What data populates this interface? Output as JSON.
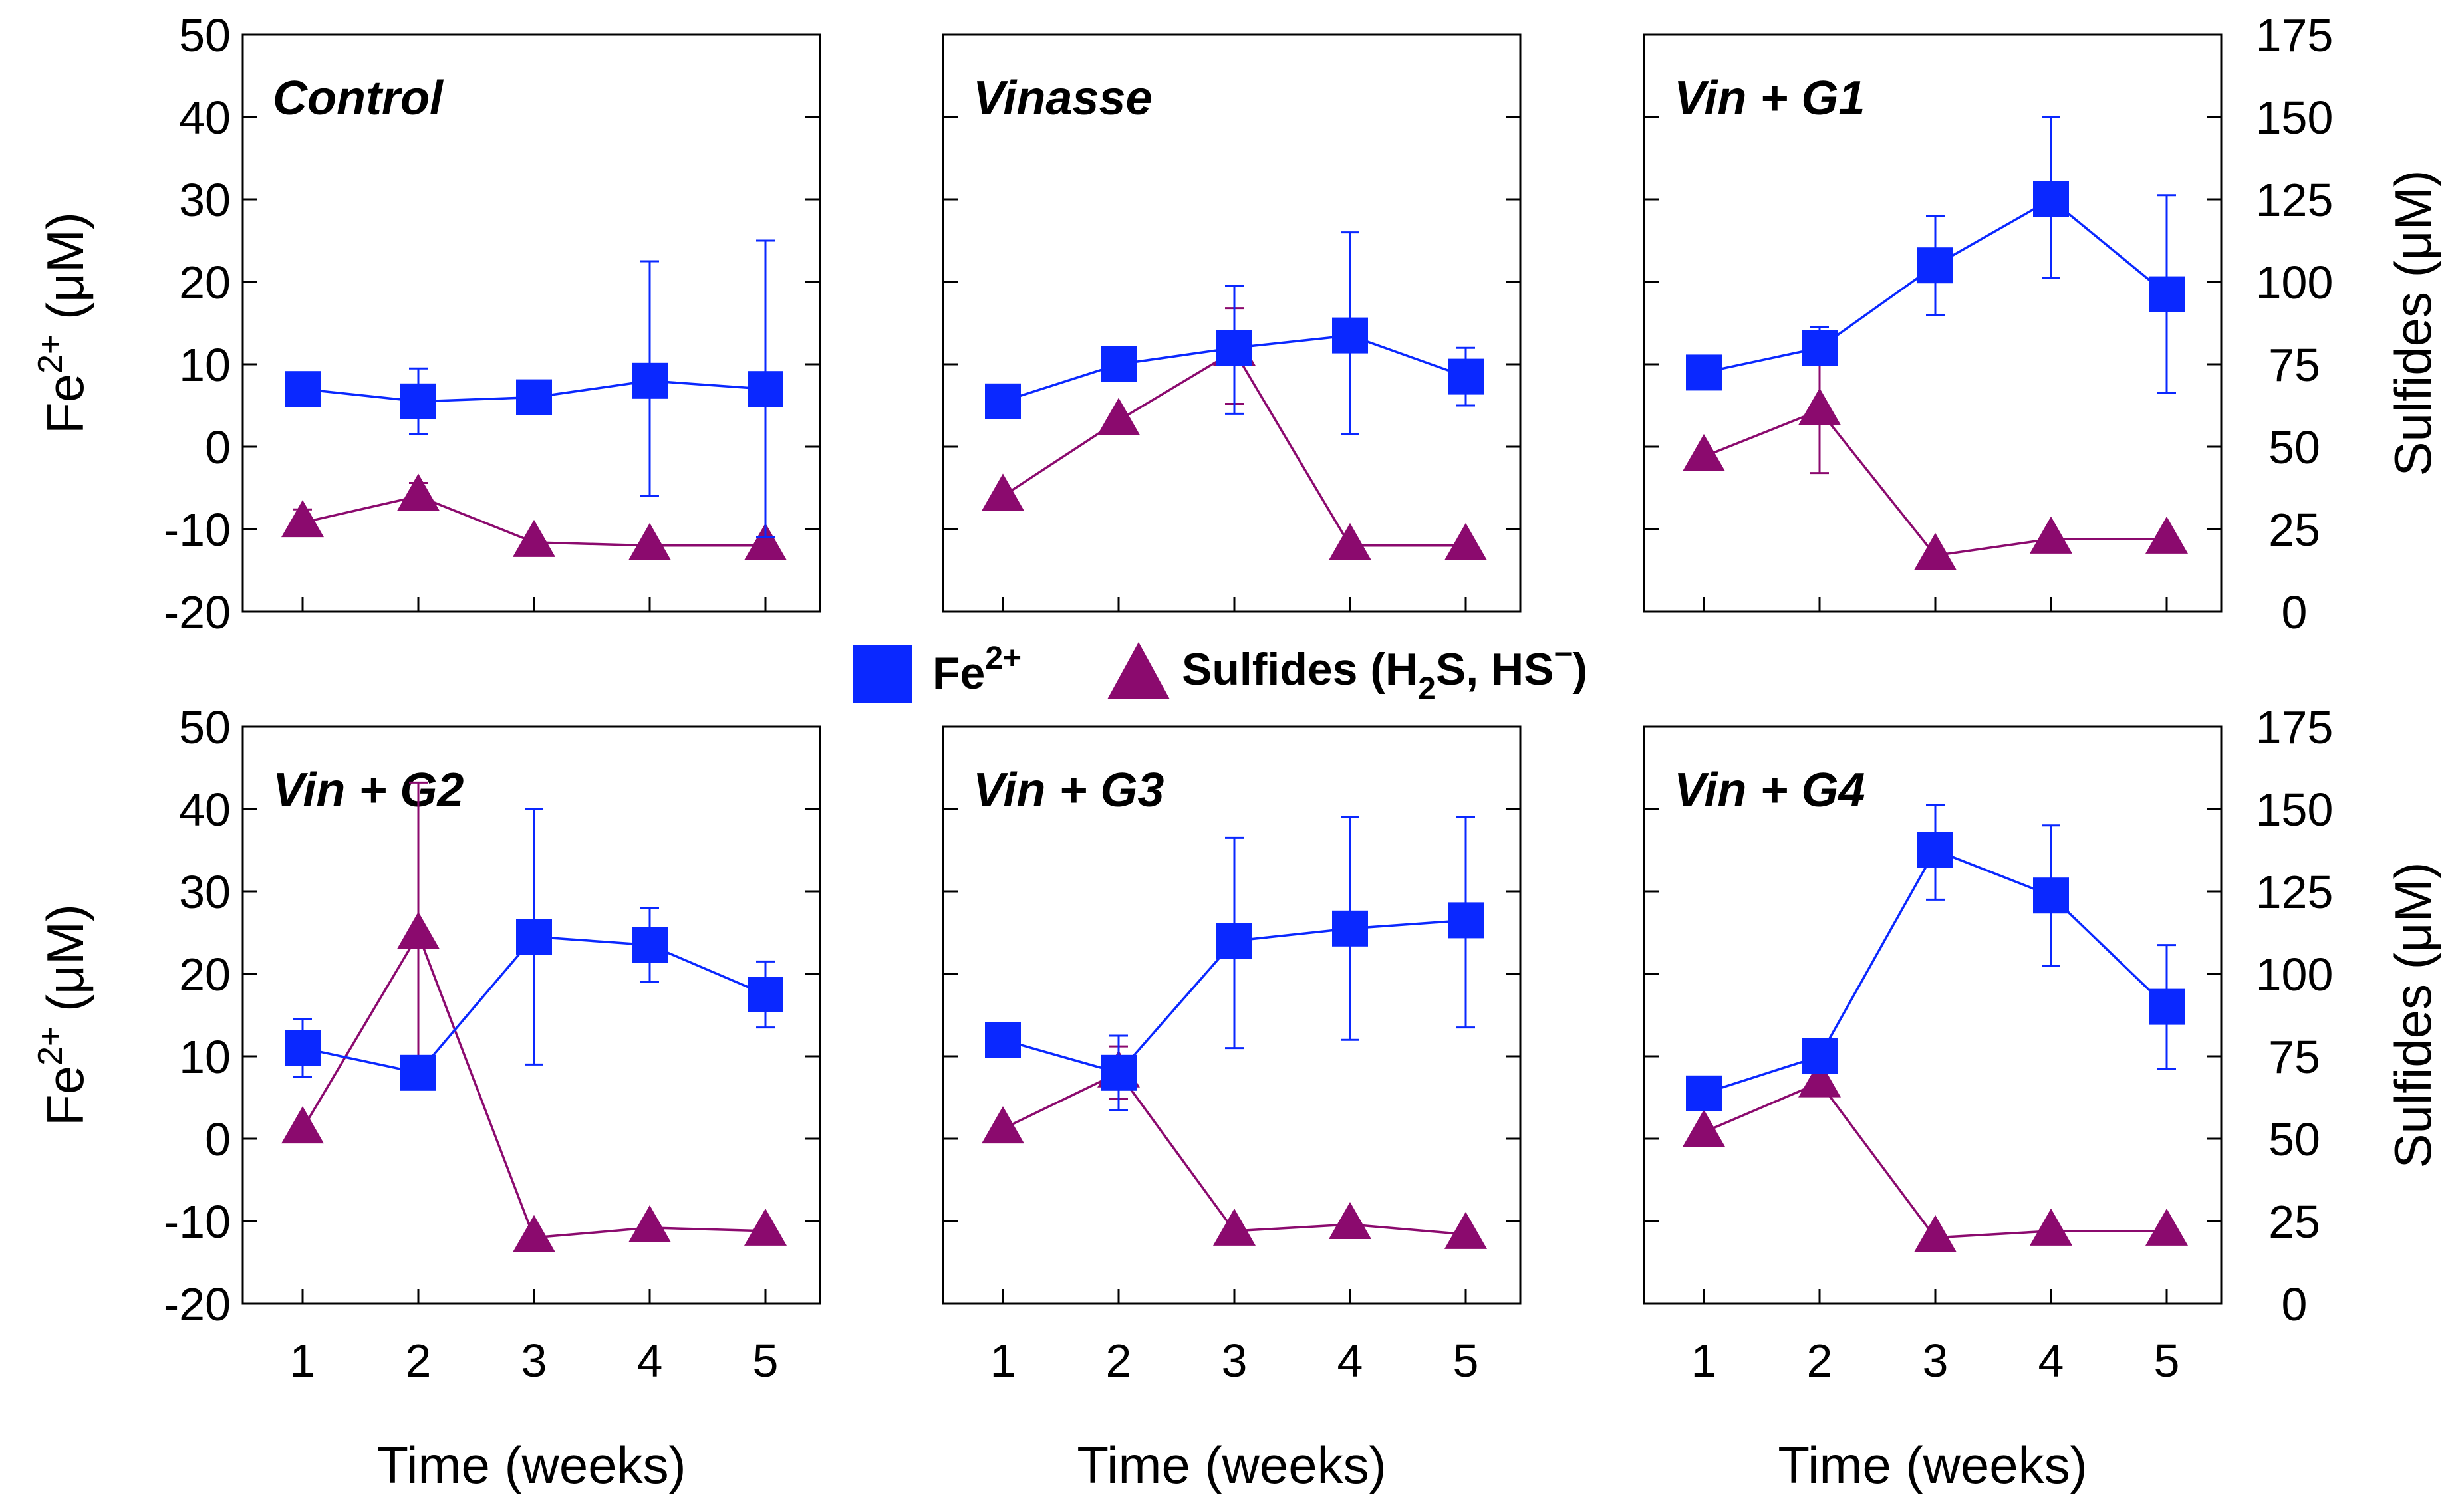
{
  "chart_data": {
    "type": "line",
    "layout": "2x3 panels",
    "x_label": "Time (weeks)",
    "x_ticks": [
      1,
      2,
      3,
      4,
      5
    ],
    "left_axis": {
      "label_main": "Fe",
      "label_sup": "2+",
      "label_unit": " (μM)",
      "ylim": [
        -20,
        50
      ],
      "ticks": [
        50,
        40,
        30,
        20,
        10,
        0,
        -10,
        -20
      ]
    },
    "right_axis": {
      "label": "Sulfides (μM)",
      "ylim": [
        0,
        175
      ],
      "ticks": [
        175,
        150,
        125,
        100,
        75,
        50,
        25,
        0
      ]
    },
    "legend": {
      "fe_main": "Fe",
      "fe_sup": "2+",
      "s_prefix": "Sulfides (H",
      "s_sub": "2",
      "s_mid": "S, HS",
      "s_sup": "−",
      "s_suffix": ")"
    },
    "colors": {
      "fe": "#0a28ff",
      "sulfide": "#8b0a6e"
    },
    "panels": [
      {
        "title": "Control",
        "fe": [
          7,
          5.5,
          6,
          8,
          7
        ],
        "fe_err_low": [
          7,
          1.5,
          6,
          -6,
          -11
        ],
        "fe_err_high": [
          7,
          9.5,
          6,
          22.5,
          25
        ],
        "sulfide": [
          27,
          35,
          21,
          20,
          20
        ],
        "sulfide_err_low": [
          23,
          31,
          21,
          20,
          20
        ],
        "sulfide_err_high": [
          31,
          39,
          21,
          20,
          20
        ]
      },
      {
        "title": "Vinasse",
        "fe": [
          5.5,
          10,
          12,
          13.5,
          8.5
        ],
        "fe_err_low": [
          5.5,
          10,
          4,
          1.5,
          5
        ],
        "fe_err_high": [
          5.5,
          10,
          19.5,
          26,
          12
        ],
        "sulfide": [
          35,
          58,
          79,
          20,
          20
        ],
        "sulfide_err_low": [
          35,
          58,
          63,
          20,
          20
        ],
        "sulfide_err_high": [
          35,
          58,
          92,
          20,
          20
        ]
      },
      {
        "title": "Vin + G1",
        "fe": [
          9,
          12,
          22,
          30,
          18.5
        ],
        "fe_err_low": [
          9,
          10,
          16,
          20.5,
          6.5
        ],
        "fe_err_high": [
          9,
          14.5,
          28,
          40,
          30.5
        ],
        "sulfide": [
          47,
          61,
          17,
          22,
          22
        ],
        "sulfide_err_low": [
          47,
          42,
          17,
          22,
          22
        ],
        "sulfide_err_high": [
          47,
          80,
          17,
          22,
          22
        ]
      },
      {
        "title": "Vin + G2",
        "fe": [
          11,
          8,
          24.5,
          23.5,
          17.5
        ],
        "fe_err_low": [
          7.5,
          8,
          9,
          19,
          13.5
        ],
        "fe_err_high": [
          14.5,
          8,
          40,
          28,
          21.5
        ],
        "sulfide": [
          53,
          112,
          20,
          23,
          22
        ],
        "sulfide_err_low": [
          53,
          66,
          20,
          23,
          22
        ],
        "sulfide_err_high": [
          53,
          158,
          20,
          23,
          22
        ]
      },
      {
        "title": "Vin + G3",
        "fe": [
          12,
          8,
          24,
          25.5,
          26.5
        ],
        "fe_err_low": [
          12,
          3.5,
          11,
          12,
          13.5
        ],
        "fe_err_high": [
          12,
          12.5,
          36.5,
          39,
          39
        ],
        "sulfide": [
          53,
          70,
          22,
          24,
          21
        ],
        "sulfide_err_low": [
          53,
          62,
          22,
          24,
          21
        ],
        "sulfide_err_high": [
          53,
          78,
          22,
          24,
          21
        ]
      },
      {
        "title": "Vin + G4",
        "fe": [
          5.5,
          10,
          35,
          29.5,
          16
        ],
        "fe_err_low": [
          5.5,
          10,
          29,
          21,
          8.5
        ],
        "fe_err_high": [
          5.5,
          10,
          40.5,
          38,
          23.5
        ],
        "sulfide": [
          52,
          67,
          20,
          22,
          22
        ],
        "sulfide_err_low": [
          52,
          63,
          20,
          22,
          22
        ],
        "sulfide_err_high": [
          52,
          71,
          20,
          22,
          22
        ]
      }
    ]
  }
}
